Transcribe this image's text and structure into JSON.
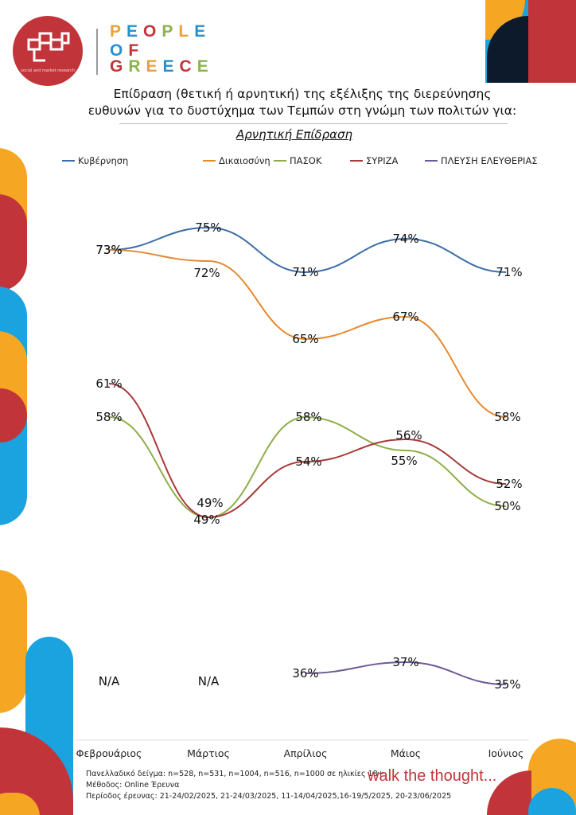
{
  "logo": {
    "caption": "social and market research"
  },
  "brand_name": {
    "line1": "PEOPLE",
    "line2": "OF",
    "line3": "GREECE"
  },
  "header": {
    "title_line1": "Επίδραση (θετική ή αρνητική) της εξέλιξης της διερεύνησης",
    "title_line2": "ευθυνών για το δυστύχημα των Τεμπών στη γνώμη των πολιτών για:",
    "subtitle": "Αρνητική Επίδραση"
  },
  "footer": {
    "line1": "Πανελλαδικό δείγμα: n=528, n=531, n=1004, n=516, n=1000 σε ηλικίες 18+",
    "line2": "Μέθοδος: Online Έρευνα",
    "line3": "Περίοδος έρευνας: 21-24/02/2025, 21-24/03/2025,  11-14/04/2025,16-19/5/2025, 20-23/06/2025",
    "tagline": "walk the thought..."
  },
  "colors": {
    "brand_red": "#c1353a",
    "brand_orange": "#f5a623",
    "brand_blue": "#1aa3df",
    "brand_navy": "#0d1a2c"
  },
  "chart_data": {
    "type": "line",
    "title": "Αρνητική Επίδραση",
    "categories": [
      "Φεβρουάριος",
      "Μάρτιος",
      "Απρίλιος",
      "Μάιος",
      "Ιούνιος"
    ],
    "legend_position": "top",
    "grid": false,
    "y_unit": "%",
    "na_label": "N/A",
    "series": [
      {
        "name": "Κυβέρνηση",
        "color": "#3b6ea8",
        "values": [
          73,
          75,
          71,
          74,
          71
        ]
      },
      {
        "name": "Δικαιοσύνη",
        "color": "#e8892e",
        "values": [
          73,
          72,
          65,
          67,
          58
        ]
      },
      {
        "name": "ΠΑΣΟΚ",
        "color": "#8fae4a",
        "values": [
          58,
          49,
          58,
          55,
          50
        ]
      },
      {
        "name": "ΣΥΡΙΖΑ",
        "color": "#a83a3a",
        "values": [
          61,
          49,
          54,
          56,
          52
        ]
      },
      {
        "name": "ΠΛΕΥΣΗ ΕΛΕΥΘΕΡΙΑΣ",
        "color": "#6e5a96",
        "values": [
          null,
          null,
          36,
          37,
          35
        ]
      }
    ]
  }
}
